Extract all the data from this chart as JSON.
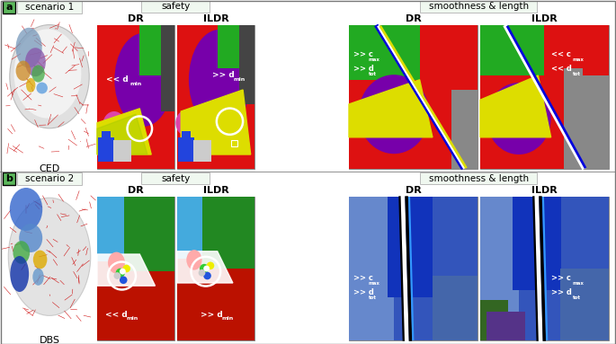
{
  "fig_width": 6.85,
  "fig_height": 3.83,
  "dpi": 100,
  "bg": "#ffffff",
  "row_a": {
    "label": "a",
    "scenario": "scenario 1",
    "brain_label": "CED",
    "safety_title": "safety",
    "smooth_title": "smoothness & length",
    "col_labels_safety": [
      "DR",
      "ILDR"
    ],
    "col_labels_smooth": [
      "DR",
      "ILDR"
    ],
    "ann_safety_dr": [
      "<< d",
      "min"
    ],
    "ann_safety_ildr": [
      ">> d",
      "min"
    ],
    "ann_smooth_dr": [
      ">> c",
      "max",
      ">> d",
      "tot"
    ],
    "ann_smooth_ildr": [
      "<< c",
      "max",
      "<< d",
      "tot"
    ]
  },
  "row_b": {
    "label": "b",
    "scenario": "scenario 2",
    "brain_label": "DBS",
    "safety_title": "safety",
    "smooth_title": "smoothness & length",
    "col_labels_safety": [
      "DR",
      "ILDR"
    ],
    "col_labels_smooth": [
      "DR",
      "ILDR"
    ],
    "ann_safety_dr": [
      "<< d",
      "min"
    ],
    "ann_safety_ildr": [
      ">> d",
      "min"
    ],
    "ann_smooth_dr": [
      ">> c",
      "max",
      ">> d",
      "tot"
    ],
    "ann_smooth_ildr": [
      ">> c",
      "max",
      ">> d",
      "tot"
    ]
  }
}
